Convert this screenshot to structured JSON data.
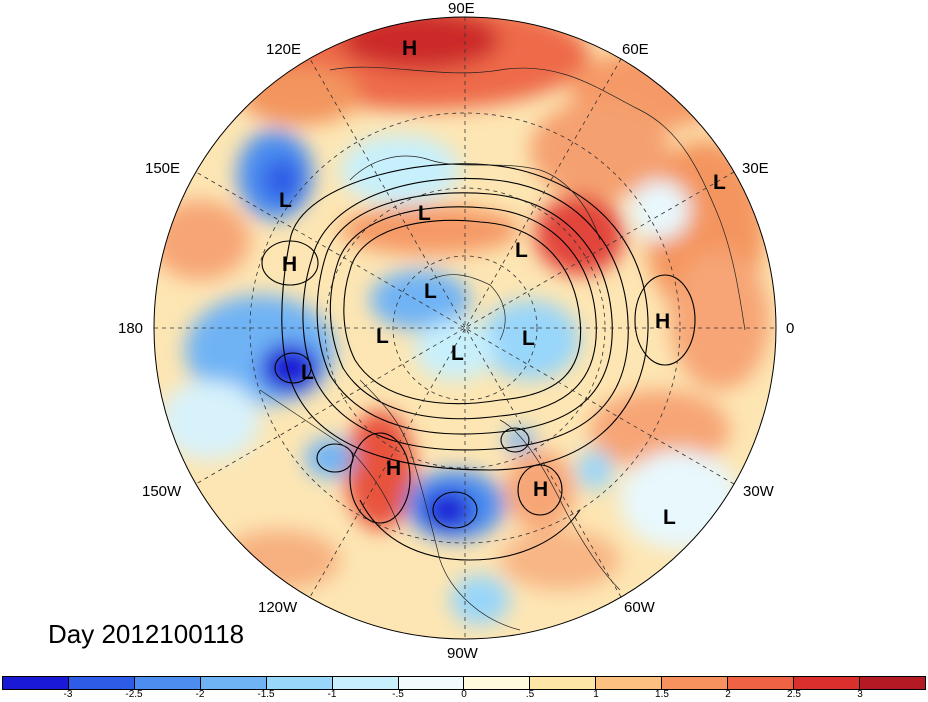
{
  "map": {
    "projection": "north-polar-stereographic",
    "longitude_labels": [
      {
        "id": "lon-90e",
        "text": "90E"
      },
      {
        "id": "lon-60e",
        "text": "60E"
      },
      {
        "id": "lon-120e",
        "text": "120E"
      },
      {
        "id": "lon-150e",
        "text": "150E"
      },
      {
        "id": "lon-30e",
        "text": "30E"
      },
      {
        "id": "lon-180",
        "text": "180"
      },
      {
        "id": "lon-0",
        "text": "0"
      },
      {
        "id": "lon-150w",
        "text": "150W"
      },
      {
        "id": "lon-30w",
        "text": "30W"
      },
      {
        "id": "lon-120w",
        "text": "120W"
      },
      {
        "id": "lon-60w",
        "text": "60W"
      },
      {
        "id": "lon-90w",
        "text": "90W"
      }
    ],
    "pressure_centers": [
      {
        "id": "h1",
        "text": "H",
        "region": "northern Siberia"
      },
      {
        "id": "h2",
        "text": "H",
        "region": "North Pacific"
      },
      {
        "id": "h3",
        "text": "H",
        "region": "Europe"
      },
      {
        "id": "h4",
        "text": "H",
        "region": "western North America"
      },
      {
        "id": "h5",
        "text": "H",
        "region": "North Atlantic"
      },
      {
        "id": "l1",
        "text": "L",
        "region": "Sea of Okhotsk"
      },
      {
        "id": "l2",
        "text": "L",
        "region": "Eastern Siberia"
      },
      {
        "id": "l3",
        "text": "L",
        "region": "Central Siberia"
      },
      {
        "id": "l4",
        "text": "L",
        "region": "Arctic Ocean"
      },
      {
        "id": "l5",
        "text": "L",
        "region": "Arctic near Alaska"
      },
      {
        "id": "l6",
        "text": "L",
        "region": "Arctic near Greenland"
      },
      {
        "id": "l7",
        "text": "L",
        "region": "Canadian Arctic"
      },
      {
        "id": "l8",
        "text": "L",
        "region": "Gulf of Alaska / Bering"
      },
      {
        "id": "l9",
        "text": "L",
        "region": "Eastern Europe"
      },
      {
        "id": "l10",
        "text": "L",
        "region": "Central Atlantic"
      }
    ]
  },
  "date_label": "Day 2012100118",
  "colorbar": {
    "colors": [
      "#1a1ad6",
      "#2e5ce6",
      "#4b8ef0",
      "#6fb3f5",
      "#98d6fa",
      "#c8f0fc",
      "#f1fbfd",
      "#fffbdc",
      "#fee7a6",
      "#fcc080",
      "#f7925f",
      "#ef6243",
      "#d92f2d",
      "#b41a24"
    ],
    "tick_labels": [
      "-3",
      "-2.5",
      "-2",
      "-1.5",
      "-1",
      "-.5",
      "0",
      ".5",
      "1",
      "1.5",
      "2",
      "2.5",
      "3"
    ]
  }
}
